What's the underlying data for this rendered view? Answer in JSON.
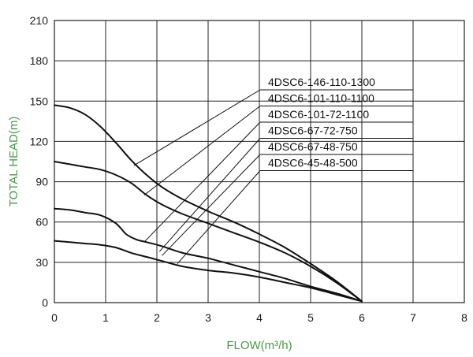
{
  "chart_data": {
    "type": "line",
    "xlabel": "FLOW(m³/h)",
    "ylabel": "TOTAL HEAD(m)",
    "xlim": [
      0,
      8
    ],
    "ylim": [
      0,
      210
    ],
    "xticks": [
      "0",
      "1",
      "2",
      "3",
      "4",
      "5",
      "6",
      "7",
      "8"
    ],
    "yticks": [
      "0",
      "30",
      "60",
      "90",
      "120",
      "150",
      "180",
      "210"
    ],
    "grid": true,
    "series": [
      {
        "name": "4DSC6-146-110-1300",
        "x": [
          0,
          0.3,
          0.6,
          0.9,
          1.2,
          1.5,
          1.8,
          2.1,
          2.5,
          3.0,
          3.5,
          4.0,
          4.5,
          5.0,
          5.5,
          6.0
        ],
        "y": [
          147,
          145,
          140,
          131,
          119,
          106,
          95,
          86,
          77,
          68,
          60,
          51,
          41,
          29,
          16,
          1
        ],
        "leader_at": [
          1.55,
          102
        ]
      },
      {
        "name": "4DSC6-101-110-1100",
        "x": [
          0,
          0.3,
          0.6,
          0.9,
          1.2,
          1.5,
          1.8,
          2.1,
          2.5,
          3.0,
          3.5,
          4.0,
          4.5,
          5.0,
          5.5,
          6.0
        ],
        "y": [
          105,
          103,
          101,
          99,
          95,
          89,
          80,
          73,
          66,
          59,
          52,
          45,
          37,
          27,
          15,
          1
        ],
        "leader_at": [
          1.75,
          80
        ]
      },
      {
        "name": "4DSC6-101-72-1100",
        "x": [
          0,
          0.3,
          0.6,
          0.9,
          1.2,
          1.4,
          1.6,
          1.8,
          2.1,
          2.5,
          3.0,
          3.5,
          4.0,
          4.5,
          5.0,
          5.5,
          6.0
        ],
        "y": [
          70,
          69,
          67,
          65,
          59,
          51,
          47,
          45,
          42,
          37,
          33,
          28,
          23,
          18,
          12,
          7,
          1
        ],
        "leader_at": [
          1.75,
          45
        ]
      },
      {
        "name": "4DSC6-67-72-750",
        "x": [
          0,
          6
        ],
        "y": [
          0,
          0
        ],
        "leader_at": [
          2.05,
          38
        ]
      },
      {
        "name": "4DSC6-67-48-750",
        "x": [
          0,
          6
        ],
        "y": [
          0,
          0
        ],
        "leader_at": [
          2.1,
          35
        ]
      },
      {
        "name": "4DSC6-45-48-500",
        "x": [
          0,
          0.3,
          0.6,
          0.9,
          1.2,
          1.5,
          1.8,
          2.1,
          2.5,
          3.0,
          3.5,
          4.0,
          4.5,
          5.0,
          5.5,
          6.0
        ],
        "y": [
          46,
          45,
          44,
          43,
          41,
          37,
          34,
          31,
          27,
          24,
          22,
          19,
          15,
          11,
          6,
          1
        ],
        "leader_at": [
          2.4,
          29
        ]
      }
    ]
  }
}
